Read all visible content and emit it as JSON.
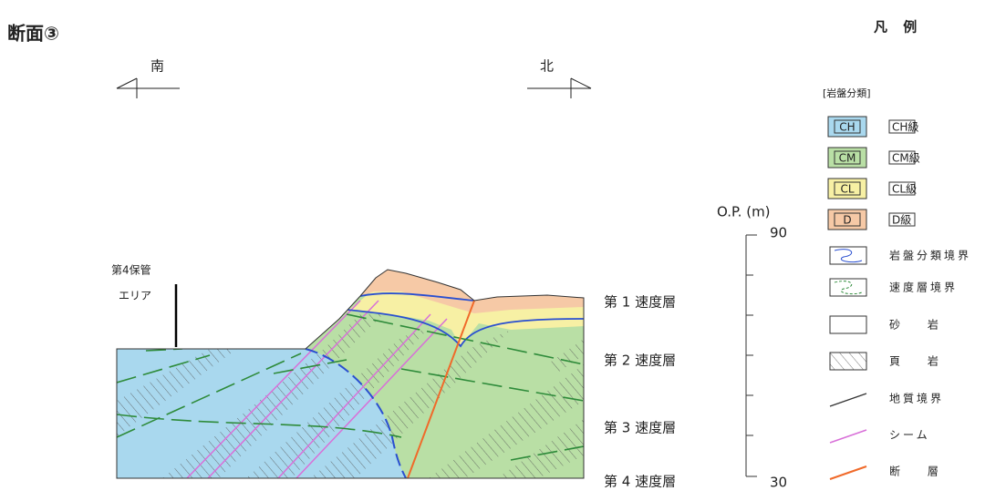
{
  "title": "断面③",
  "directions": {
    "south": "南",
    "north": "北"
  },
  "area_label": {
    "line1": "第4保管",
    "line2": "エリア"
  },
  "velocity_layers": [
    "第 1 速度層",
    "第 2 速度層",
    "第 3 速度層",
    "第 4 速度層"
  ],
  "scale": {
    "label": "O.P. (m)",
    "top": 90,
    "bottom": 30
  },
  "legend": {
    "title": "凡 例",
    "group": "[岩盤分類]",
    "rock_classes": [
      {
        "symbol": "CH",
        "label": "CH級"
      },
      {
        "symbol": "CM",
        "label": "CM級"
      },
      {
        "symbol": "CL",
        "label": "CL級"
      },
      {
        "symbol": "D",
        "label": "D級"
      }
    ],
    "items": [
      "岩盤分類境界",
      "速度層境界",
      "砂 岩",
      "頁 岩",
      "地質境界",
      "シーム",
      "断 層"
    ]
  }
}
